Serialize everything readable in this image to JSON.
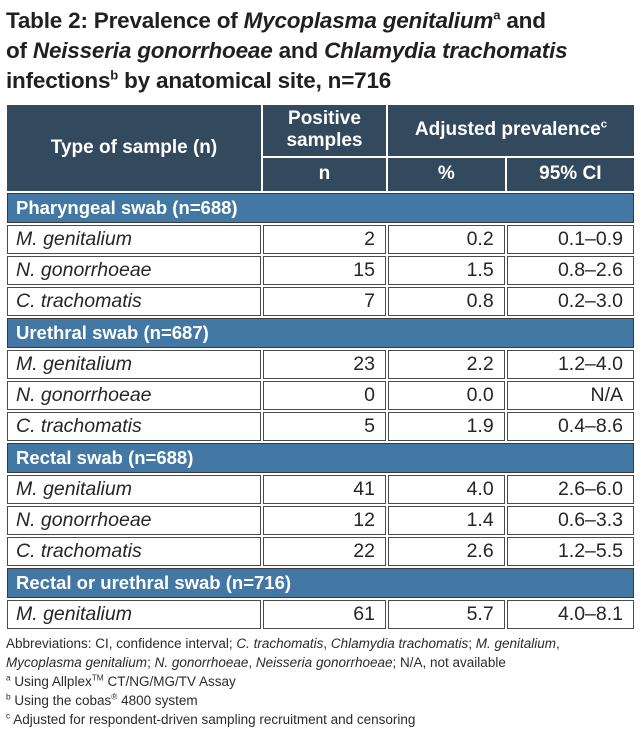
{
  "colors": {
    "header_bg": "#334a5e",
    "band_bg": "#4377a4",
    "border_dark": "#4b4b4b",
    "text_dark": "#231f20"
  },
  "title_segments": [
    {
      "t": "Table 2: Prevalence of "
    },
    {
      "t": "Mycoplasma genitalium",
      "i": true
    },
    {
      "t": "a",
      "sup": true
    },
    {
      "t": " and"
    },
    {
      "br": true
    },
    {
      "t": "of "
    },
    {
      "t": "Neisseria gonorrhoeae",
      "i": true
    },
    {
      "t": " and "
    },
    {
      "t": "Chlamydia trachomatis",
      "i": true
    },
    {
      "br": true
    },
    {
      "t": "infections"
    },
    {
      "t": "b",
      "sup": true
    },
    {
      "t": " by anatomical site, n=716"
    }
  ],
  "table": {
    "header": {
      "type_of_sample": "Type of sample (n)",
      "positive_samples": "Positive samples",
      "adjusted_prevalence_segments": [
        {
          "t": "Adjusted prevalence"
        },
        {
          "t": "c",
          "sup": true
        }
      ],
      "n": "n",
      "percent": "%",
      "ci": "95% CI"
    },
    "sections": [
      {
        "label": "Pharyngeal swab (n=688)",
        "rows": [
          {
            "organism": "M. genitalium",
            "n": "2",
            "pct": "0.2",
            "ci": "0.1–0.9"
          },
          {
            "organism": "N. gonorrhoeae",
            "n": "15",
            "pct": "1.5",
            "ci": "0.8–2.6"
          },
          {
            "organism": "C. trachomatis",
            "n": "7",
            "pct": "0.8",
            "ci": "0.2–3.0"
          }
        ]
      },
      {
        "label": "Urethral swab (n=687)",
        "rows": [
          {
            "organism": "M. genitalium",
            "n": "23",
            "pct": "2.2",
            "ci": "1.2–4.0"
          },
          {
            "organism": "N. gonorrhoeae",
            "n": "0",
            "pct": "0.0",
            "ci": "N/A"
          },
          {
            "organism": "C. trachomatis",
            "n": "5",
            "pct": "1.9",
            "ci": "0.4–8.6"
          }
        ]
      },
      {
        "label": "Rectal swab (n=688)",
        "rows": [
          {
            "organism": "M. genitalium",
            "n": "41",
            "pct": "4.0",
            "ci": "2.6–6.0"
          },
          {
            "organism": "N. gonorrhoeae",
            "n": "12",
            "pct": "1.4",
            "ci": "0.6–3.3"
          },
          {
            "organism": "C. trachomatis",
            "n": "22",
            "pct": "2.6",
            "ci": "1.2–5.5"
          }
        ]
      },
      {
        "label": "Rectal or urethral swab (n=716)",
        "rows": [
          {
            "organism": "M. genitalium",
            "n": "61",
            "pct": "5.7",
            "ci": "4.0–8.1"
          }
        ]
      }
    ]
  },
  "footnotes": {
    "abbreviations_segments": [
      {
        "t": "Abbreviations: CI, confidence interval; "
      },
      {
        "t": "C. trachomatis",
        "i": true
      },
      {
        "t": ", "
      },
      {
        "t": "Chlamydia trachomatis",
        "i": true
      },
      {
        "t": "; "
      },
      {
        "t": "M. genitalium",
        "i": true
      },
      {
        "t": ","
      },
      {
        "br": true
      },
      {
        "t": "Mycoplasma genitalium",
        "i": true
      },
      {
        "t": "; "
      },
      {
        "t": "N. gonorrhoeae",
        "i": true
      },
      {
        "t": ", "
      },
      {
        "t": "Neisseria gonorrhoeae",
        "i": true
      },
      {
        "t": "; N/A, not available"
      }
    ],
    "a_segments": [
      {
        "t": "a",
        "sup": true
      },
      {
        "t": " Using Allplex"
      },
      {
        "t": "TM",
        "sup": true
      },
      {
        "t": " CT/NG/MG/TV Assay"
      }
    ],
    "b_segments": [
      {
        "t": "b",
        "sup": true
      },
      {
        "t": " Using the cobas"
      },
      {
        "t": "®",
        "sup": true
      },
      {
        "t": " 4800 system"
      }
    ],
    "c_segments": [
      {
        "t": "c",
        "sup": true
      },
      {
        "t": " Adjusted for respondent-driven sampling recruitment and censoring"
      }
    ]
  }
}
